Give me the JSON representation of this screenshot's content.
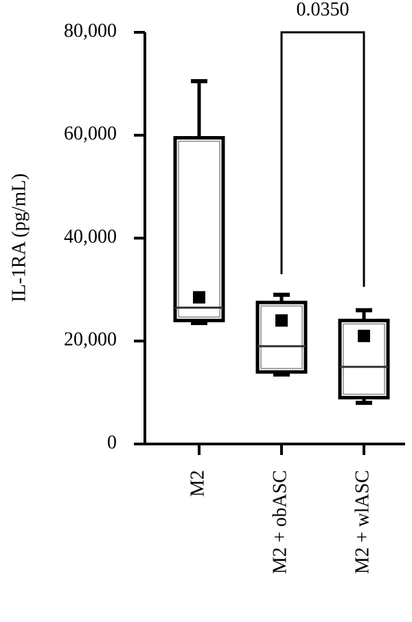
{
  "chart_data": {
    "type": "box",
    "y_label": "IL-1RA (pg/mL)",
    "categories": [
      "M2",
      "M2 + obASC",
      "M2 + wlASC"
    ],
    "boxes": [
      {
        "min": 23500,
        "q1": 24000,
        "median": 26500,
        "q3": 59500,
        "max": 70500,
        "mean": 28500
      },
      {
        "min": 13500,
        "q1": 14000,
        "median": 19000,
        "q3": 27500,
        "max": 29000,
        "mean": 24000
      },
      {
        "min": 8000,
        "q1": 9000,
        "median": 15000,
        "q3": 24000,
        "max": 26000,
        "mean": 21000
      }
    ],
    "annotation": "0.0350",
    "color": "#000000",
    "ylim": [
      0,
      80000
    ],
    "yticks": [
      0,
      {
        "value": 20000,
        "label": "20,000"
      },
      {
        "value": 40000,
        "label": "40,000"
      },
      {
        "value": 60000,
        "label": "60,000"
      },
      {
        "value": 80000,
        "label": "80,000"
      }
    ]
  }
}
